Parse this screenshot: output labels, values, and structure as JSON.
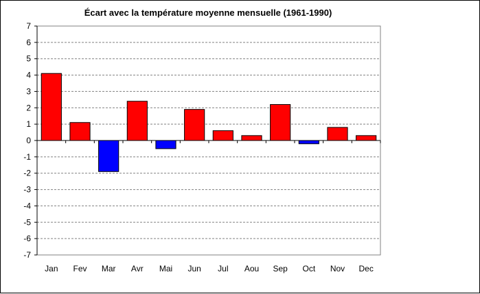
{
  "chart_data": {
    "type": "bar",
    "title": "Écart avec la température moyenne mensuelle (1961-1990)",
    "xlabel": "",
    "ylabel": "",
    "categories": [
      "Jan",
      "Fev",
      "Mar",
      "Avr",
      "Mai",
      "Jun",
      "Jul",
      "Aou",
      "Sep",
      "Oct",
      "Nov",
      "Dec"
    ],
    "values": [
      4.1,
      1.1,
      -1.9,
      2.4,
      -0.5,
      1.9,
      0.6,
      0.3,
      2.2,
      -0.2,
      0.8,
      0.3
    ],
    "ylim": [
      -7,
      7
    ],
    "yticks": [
      "7",
      "6",
      "5",
      "4",
      "3",
      "2",
      "1",
      "0",
      "-1",
      "-2",
      "-3",
      "-4",
      "-5",
      "-6",
      "-7"
    ],
    "grid": "horizontal dashed",
    "legend": "none",
    "colors": {
      "positive": "#ff0000",
      "negative": "#0000ff",
      "background": "#ffffff",
      "grid": "#808080"
    }
  }
}
